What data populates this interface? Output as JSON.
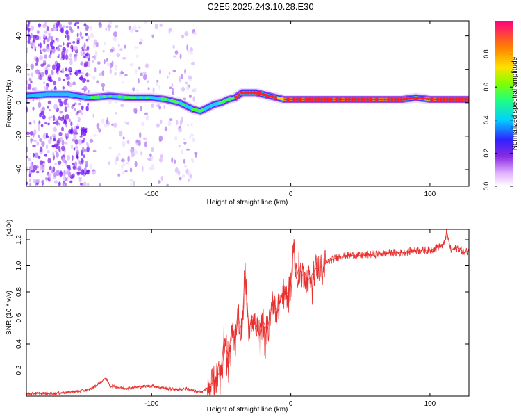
{
  "title": "C2E5.2025.243.10.28.E30",
  "colors": {
    "snr_line": "#e8312f",
    "spectrogram_track": [
      "#ff2020",
      "#ffd000",
      "#40ff40",
      "#20d0ff",
      "#4020ff",
      "#8a2be2"
    ],
    "axis": "#000000",
    "background": "#ffffff"
  },
  "chart_data": [
    {
      "type": "heatmap",
      "title": "C2E5.2025.243.10.28.E30",
      "xlabel": "Height of straight line (km)",
      "ylabel": "Frequency (Hz)",
      "xlim": [
        -190,
        128
      ],
      "ylim": [
        -50,
        49
      ],
      "x_ticks": [
        -100,
        0,
        100
      ],
      "y_ticks": [
        -40,
        -20,
        0,
        20,
        40
      ],
      "colorbar": {
        "label": "Normalized spectral amplitude",
        "range": [
          0,
          1
        ],
        "ticks": [
          "0.0",
          "0.2",
          "0.4",
          "0.6",
          "0.8"
        ],
        "colormap": "rainbow (white-purple-blue-cyan-green-yellow-red)"
      },
      "dominant_frequency_track": {
        "x": [
          -190,
          -175,
          -160,
          -145,
          -130,
          -115,
          -100,
          -90,
          -80,
          -70,
          -65,
          -60,
          -55,
          -50,
          -45,
          -40,
          -35,
          -30,
          -25,
          -20,
          -15,
          -10,
          -5,
          0,
          20,
          40,
          60,
          80,
          90,
          100,
          110,
          128
        ],
        "y": [
          4,
          5,
          5,
          3,
          4,
          3,
          3,
          2,
          0,
          -4,
          -5,
          -3,
          -1,
          0,
          2,
          3,
          6,
          6,
          6,
          5,
          4,
          3,
          2,
          2,
          2,
          2,
          2,
          2,
          3,
          2,
          2,
          2
        ]
      },
      "noise_regions": [
        {
          "x_range": [
            -190,
            -145
          ],
          "density": "high"
        },
        {
          "x_range": [
            -145,
            -68
          ],
          "density": "low"
        }
      ]
    },
    {
      "type": "line",
      "xlabel": "Height of straight line (km)",
      "ylabel": "SNR (10 * v/v)",
      "y_scale_label": "(x10⁴)",
      "xlim": [
        -190,
        128
      ],
      "ylim": [
        0,
        1.28
      ],
      "x_ticks": [
        -100,
        0,
        100
      ],
      "y_ticks": [
        0.2,
        0.4,
        0.6,
        0.8,
        1.0,
        1.2
      ],
      "series": [
        {
          "x": [
            -190,
            -180,
            -170,
            -160,
            -150,
            -145,
            -140,
            -135,
            -133,
            -130,
            -125,
            -120,
            -110,
            -100,
            -90,
            -80,
            -75,
            -70,
            -65,
            -60,
            -55,
            -50,
            -48,
            -45,
            -42,
            -40,
            -38,
            -35,
            -33,
            -30,
            -28,
            -25,
            -22,
            -20,
            -17,
            -15,
            -12,
            -10,
            -8,
            -5,
            -3,
            0,
            2,
            4,
            6,
            8,
            10,
            12,
            15,
            18,
            20,
            25,
            30,
            35,
            40,
            50,
            60,
            70,
            80,
            90,
            100,
            105,
            110,
            112,
            115,
            120,
            125,
            128
          ],
          "y": [
            0.02,
            0.02,
            0.02,
            0.03,
            0.04,
            0.05,
            0.08,
            0.12,
            0.14,
            0.08,
            0.07,
            0.06,
            0.07,
            0.08,
            0.06,
            0.05,
            0.06,
            0.04,
            0.03,
            0.06,
            0.12,
            0.2,
            0.45,
            0.3,
            0.55,
            0.4,
            0.6,
            0.5,
            0.97,
            0.5,
            0.62,
            0.55,
            0.45,
            0.58,
            0.5,
            0.62,
            0.75,
            0.62,
            0.72,
            0.8,
            0.78,
            0.85,
            1.18,
            0.9,
            1.0,
            0.92,
            0.95,
            0.88,
            0.93,
            0.98,
            0.98,
            1.02,
            1.05,
            1.07,
            1.08,
            1.08,
            1.09,
            1.1,
            1.1,
            1.12,
            1.12,
            1.14,
            1.16,
            1.26,
            1.12,
            1.14,
            1.1,
            1.12
          ]
        }
      ]
    }
  ]
}
